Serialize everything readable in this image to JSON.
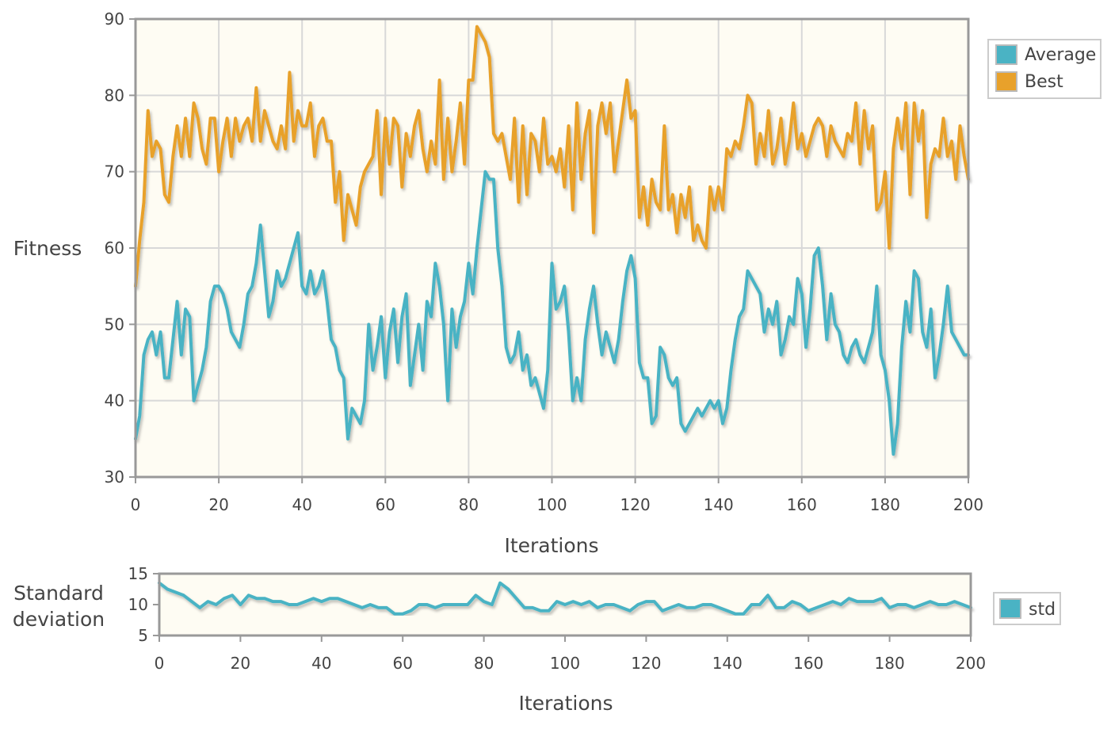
{
  "colors": {
    "average": "#4AB3C4",
    "best": "#E8A12B",
    "std": "#4AB3C4",
    "plot_bg": "#FEFCF3",
    "grid": "#D8D8D8",
    "frame": "#999999"
  },
  "chart_data": [
    {
      "type": "line",
      "xlabel": "Iterations",
      "ylabel": "Fitness",
      "xlim": [
        0,
        200
      ],
      "ylim": [
        30,
        90
      ],
      "xticks": [
        0,
        20,
        40,
        60,
        80,
        100,
        120,
        140,
        160,
        180,
        200
      ],
      "yticks": [
        30,
        40,
        50,
        60,
        70,
        80,
        90
      ],
      "grid": true,
      "legend": "top-right",
      "series": [
        {
          "name": "Average",
          "x": [
            0,
            1,
            2,
            3,
            4,
            5,
            6,
            7,
            8,
            9,
            10,
            11,
            12,
            13,
            14,
            15,
            16,
            17,
            18,
            19,
            20,
            21,
            22,
            23,
            24,
            25,
            26,
            27,
            28,
            29,
            30,
            31,
            32,
            33,
            34,
            35,
            36,
            37,
            38,
            39,
            40,
            41,
            42,
            43,
            44,
            45,
            46,
            47,
            48,
            49,
            50,
            51,
            52,
            53,
            54,
            55,
            56,
            57,
            58,
            59,
            60,
            61,
            62,
            63,
            64,
            65,
            66,
            67,
            68,
            69,
            70,
            71,
            72,
            73,
            74,
            75,
            76,
            77,
            78,
            79,
            80,
            81,
            82,
            83,
            84,
            85,
            86,
            87,
            88,
            89,
            90,
            91,
            92,
            93,
            94,
            95,
            96,
            97,
            98,
            99,
            100,
            101,
            102,
            103,
            104,
            105,
            106,
            107,
            108,
            109,
            110,
            111,
            112,
            113,
            114,
            115,
            116,
            117,
            118,
            119,
            120,
            121,
            122,
            123,
            124,
            125,
            126,
            127,
            128,
            129,
            130,
            131,
            132,
            133,
            134,
            135,
            136,
            137,
            138,
            139,
            140,
            141,
            142,
            143,
            144,
            145,
            146,
            147,
            148,
            149,
            150,
            151,
            152,
            153,
            154,
            155,
            156,
            157,
            158,
            159,
            160,
            161,
            162,
            163,
            164,
            165,
            166,
            167,
            168,
            169,
            170,
            171,
            172,
            173,
            174,
            175,
            176,
            177,
            178,
            179,
            180,
            181,
            182,
            183,
            184,
            185,
            186,
            187,
            188,
            189,
            190,
            191,
            192,
            193,
            194,
            195,
            196,
            197,
            198,
            199,
            200
          ],
          "values": [
            35,
            38,
            46,
            48,
            49,
            46,
            49,
            43,
            43,
            48,
            53,
            46,
            52,
            51,
            40,
            42,
            44,
            47,
            53,
            55,
            55,
            54,
            52,
            49,
            48,
            47,
            50,
            54,
            55,
            58,
            63,
            57,
            51,
            53,
            57,
            55,
            56,
            58,
            60,
            62,
            55,
            54,
            57,
            54,
            55,
            57,
            53,
            48,
            47,
            44,
            43,
            35,
            39,
            38,
            37,
            40,
            50,
            44,
            47,
            51,
            43,
            49,
            52,
            45,
            51,
            54,
            42,
            46,
            50,
            44,
            53,
            51,
            58,
            55,
            50,
            40,
            52,
            47,
            51,
            53,
            58,
            54,
            60,
            65,
            70,
            69,
            69,
            60,
            55,
            47,
            45,
            46,
            49,
            44,
            46,
            42,
            43,
            41,
            39,
            44,
            58,
            52,
            53,
            55,
            49,
            40,
            43,
            40,
            48,
            52,
            55,
            50,
            46,
            49,
            47,
            45,
            48,
            53,
            57,
            59,
            56,
            45,
            43,
            43,
            37,
            38,
            47,
            46,
            43,
            42,
            43,
            37,
            36,
            37,
            38,
            39,
            38,
            39,
            40,
            39,
            40,
            37,
            39,
            44,
            48,
            51,
            52,
            57,
            56,
            55,
            54,
            49,
            52,
            50,
            53,
            46,
            48,
            51,
            50,
            56,
            54,
            47,
            52,
            59,
            60,
            55,
            48,
            54,
            50,
            49,
            46,
            45,
            47,
            48,
            46,
            45,
            47,
            49,
            55,
            46,
            44,
            40,
            33,
            37,
            47,
            53,
            49,
            57,
            56,
            49,
            47,
            52,
            43,
            46,
            50,
            55,
            49,
            48,
            47,
            46,
            46
          ]
        },
        {
          "name": "Best",
          "x": [
            0,
            1,
            2,
            3,
            4,
            5,
            6,
            7,
            8,
            9,
            10,
            11,
            12,
            13,
            14,
            15,
            16,
            17,
            18,
            19,
            20,
            21,
            22,
            23,
            24,
            25,
            26,
            27,
            28,
            29,
            30,
            31,
            32,
            33,
            34,
            35,
            36,
            37,
            38,
            39,
            40,
            41,
            42,
            43,
            44,
            45,
            46,
            47,
            48,
            49,
            50,
            51,
            52,
            53,
            54,
            55,
            56,
            57,
            58,
            59,
            60,
            61,
            62,
            63,
            64,
            65,
            66,
            67,
            68,
            69,
            70,
            71,
            72,
            73,
            74,
            75,
            76,
            77,
            78,
            79,
            80,
            81,
            82,
            83,
            84,
            85,
            86,
            87,
            88,
            89,
            90,
            91,
            92,
            93,
            94,
            95,
            96,
            97,
            98,
            99,
            100,
            101,
            102,
            103,
            104,
            105,
            106,
            107,
            108,
            109,
            110,
            111,
            112,
            113,
            114,
            115,
            116,
            117,
            118,
            119,
            120,
            121,
            122,
            123,
            124,
            125,
            126,
            127,
            128,
            129,
            130,
            131,
            132,
            133,
            134,
            135,
            136,
            137,
            138,
            139,
            140,
            141,
            142,
            143,
            144,
            145,
            146,
            147,
            148,
            149,
            150,
            151,
            152,
            153,
            154,
            155,
            156,
            157,
            158,
            159,
            160,
            161,
            162,
            163,
            164,
            165,
            166,
            167,
            168,
            169,
            170,
            171,
            172,
            173,
            174,
            175,
            176,
            177,
            178,
            179,
            180,
            181,
            182,
            183,
            184,
            185,
            186,
            187,
            188,
            189,
            190,
            191,
            192,
            193,
            194,
            195,
            196,
            197,
            198,
            199,
            200
          ],
          "values": [
            55,
            61,
            66,
            78,
            72,
            74,
            73,
            67,
            66,
            72,
            76,
            72,
            77,
            72,
            79,
            77,
            73,
            71,
            77,
            77,
            70,
            74,
            77,
            72,
            77,
            74,
            76,
            77,
            74,
            81,
            74,
            78,
            76,
            74,
            73,
            76,
            73,
            83,
            74,
            78,
            76,
            76,
            79,
            72,
            76,
            77,
            74,
            74,
            66,
            70,
            61,
            67,
            65,
            63,
            68,
            70,
            71,
            72,
            78,
            67,
            77,
            71,
            77,
            76,
            68,
            75,
            72,
            76,
            78,
            73,
            70,
            74,
            71,
            82,
            69,
            77,
            70,
            74,
            79,
            71,
            82,
            82,
            89,
            88,
            87,
            85,
            75,
            74,
            75,
            72,
            69,
            77,
            66,
            76,
            67,
            75,
            74,
            70,
            77,
            71,
            72,
            70,
            73,
            68,
            76,
            65,
            79,
            69,
            75,
            78,
            62,
            76,
            79,
            75,
            79,
            70,
            74,
            78,
            82,
            77,
            78,
            64,
            68,
            63,
            69,
            66,
            65,
            76,
            65,
            67,
            62,
            67,
            64,
            68,
            61,
            63,
            61,
            60,
            68,
            65,
            68,
            65,
            73,
            72,
            74,
            73,
            76,
            80,
            79,
            71,
            75,
            72,
            78,
            71,
            73,
            77,
            71,
            74,
            79,
            73,
            75,
            72,
            74,
            76,
            77,
            76,
            72,
            76,
            74,
            73,
            72,
            75,
            74,
            79,
            71,
            78,
            73,
            76,
            65,
            66,
            70,
            60,
            73,
            77,
            73,
            79,
            67,
            79,
            74,
            78,
            64,
            71,
            73,
            72,
            77,
            72,
            74,
            69,
            76,
            72,
            69
          ]
        }
      ]
    },
    {
      "type": "line",
      "xlabel": "Iterations",
      "ylabel": "Standard deviation",
      "xlim": [
        0,
        200
      ],
      "ylim": [
        5,
        15
      ],
      "xticks": [
        0,
        20,
        40,
        60,
        80,
        100,
        120,
        140,
        160,
        180,
        200
      ],
      "yticks": [
        5,
        10,
        15
      ],
      "grid": false,
      "legend": "right",
      "series": [
        {
          "name": "std",
          "x": [
            0,
            2,
            4,
            6,
            8,
            10,
            12,
            14,
            16,
            18,
            20,
            22,
            24,
            26,
            28,
            30,
            32,
            34,
            36,
            38,
            40,
            42,
            44,
            46,
            48,
            50,
            52,
            54,
            56,
            58,
            60,
            62,
            64,
            66,
            68,
            70,
            72,
            74,
            76,
            78,
            80,
            82,
            84,
            86,
            88,
            90,
            92,
            94,
            96,
            98,
            100,
            102,
            104,
            106,
            108,
            110,
            112,
            114,
            116,
            118,
            120,
            122,
            124,
            126,
            128,
            130,
            132,
            134,
            136,
            138,
            140,
            142,
            144,
            146,
            148,
            150,
            152,
            154,
            156,
            158,
            160,
            162,
            164,
            166,
            168,
            170,
            172,
            174,
            176,
            178,
            180,
            182,
            184,
            186,
            188,
            190,
            192,
            194,
            196,
            198,
            200
          ],
          "values": [
            13.5,
            12.5,
            12,
            11.5,
            10.5,
            9.5,
            10.5,
            10,
            11,
            11.5,
            10,
            11.5,
            11,
            11,
            10.5,
            10.5,
            10,
            10,
            10.5,
            11,
            10.5,
            11,
            11,
            10.5,
            10,
            9.5,
            10,
            9.5,
            9.5,
            8.5,
            8.5,
            9,
            10,
            10,
            9.5,
            10,
            10,
            10,
            10,
            11.5,
            10.5,
            10,
            13.5,
            12.5,
            11,
            9.5,
            9.5,
            9,
            9,
            10.5,
            10,
            10.5,
            10,
            10.5,
            9.5,
            10,
            10,
            9.5,
            9,
            10,
            10.5,
            10.5,
            9,
            9.5,
            10,
            9.5,
            9.5,
            10,
            10,
            9.5,
            9,
            8.5,
            8.5,
            10,
            10,
            11.5,
            9.5,
            9.5,
            10.5,
            10,
            9,
            9.5,
            10,
            10.5,
            10,
            11,
            10.5,
            10.5,
            10.5,
            11,
            9.5,
            10,
            10,
            9.5,
            10,
            10.5,
            10,
            10,
            10.5,
            10,
            9.5
          ]
        }
      ]
    }
  ]
}
